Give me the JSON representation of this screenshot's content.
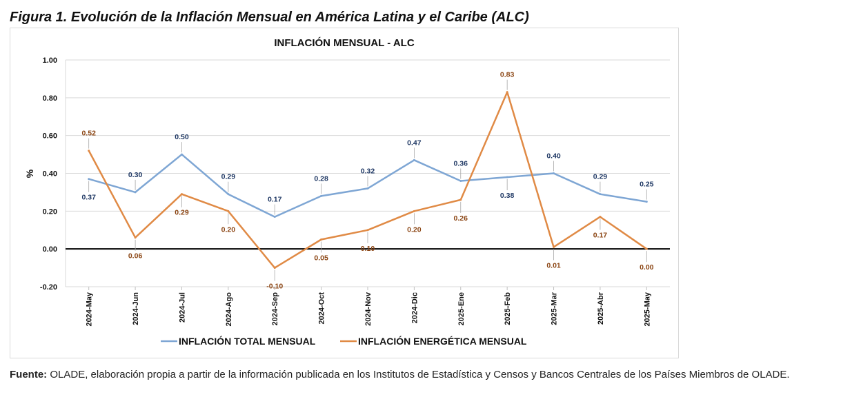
{
  "figure": {
    "title": "Figura 1. Evolución de la Inflación Mensual en América Latina y el Caribe (ALC)"
  },
  "source": {
    "label": "Fuente:",
    "text": "OLADE, elaboración propia a partir de la información publicada en los Institutos de Estadística y Censos y Bancos Centrales de los Países Miembros de OLADE."
  },
  "chart_data": {
    "type": "line",
    "title": "INFLACIÓN MENSUAL - ALC",
    "xlabel": "",
    "ylabel": "%",
    "ylim": [
      -0.2,
      1.0
    ],
    "yticks": [
      -0.2,
      0.0,
      0.2,
      0.4,
      0.6,
      0.8,
      1.0
    ],
    "ytick_labels": [
      "-0.20",
      "0.00",
      "0.20",
      "0.40",
      "0.60",
      "0.80",
      "1.00"
    ],
    "grid": true,
    "legend_position": "bottom",
    "categories": [
      "2024-May",
      "2024-Jun",
      "2024-Jul",
      "2024-Ago",
      "2024-Sep",
      "2024-Oct",
      "2024-Nov",
      "2024-Dic",
      "2025-Ene",
      "2025-Feb",
      "2025-Mar",
      "2025-Abr",
      "2025-May"
    ],
    "series": [
      {
        "name": "INFLACIÓN TOTAL MENSUAL",
        "color": "#7ea6d4",
        "label_color": "#1f3864",
        "values": [
          0.37,
          0.3,
          0.5,
          0.29,
          0.17,
          0.28,
          0.32,
          0.47,
          0.36,
          0.38,
          0.4,
          0.29,
          0.25
        ],
        "labels": [
          "0.37",
          "0.30",
          "0.50",
          "0.29",
          "0.17",
          "0.28",
          "0.32",
          "0.47",
          "0.36",
          "0.38",
          "0.40",
          "0.29",
          "0.25"
        ]
      },
      {
        "name": "INFLACIÓN ENERGÉTICA MENSUAL",
        "color": "#e08a45",
        "label_color": "#8b4513",
        "values": [
          0.52,
          0.06,
          0.29,
          0.2,
          -0.1,
          0.05,
          0.1,
          0.2,
          0.26,
          0.83,
          0.01,
          0.17,
          0.0
        ],
        "labels": [
          "0.52",
          "0.06",
          "0.29",
          "0.20",
          "-0.10",
          "0.05",
          "0.10",
          "0.20",
          "0.26",
          "0.83",
          "0.01",
          "0.17",
          "0.00"
        ]
      }
    ]
  }
}
